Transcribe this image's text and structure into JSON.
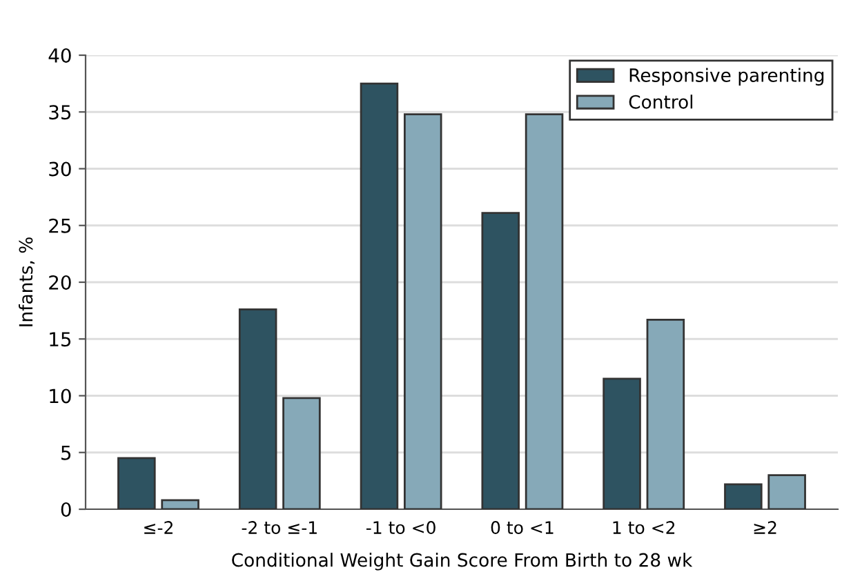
{
  "chart_data": {
    "type": "bar",
    "xlabel": "Conditional Weight Gain Score From Birth to 28 wk",
    "ylabel": "Infants, %",
    "categories": [
      "≤-2",
      "-2 to ≤-1",
      "-1 to <0",
      "0 to <1",
      "1 to <2",
      "≥2"
    ],
    "series": [
      {
        "name": "Responsive parenting",
        "color": "#2e5361",
        "values": [
          4.5,
          17.6,
          37.5,
          26.1,
          11.5,
          2.2
        ]
      },
      {
        "name": "Control",
        "color": "#86a9b8",
        "values": [
          0.8,
          9.8,
          34.8,
          34.8,
          16.7,
          3.0
        ]
      }
    ],
    "ylim": [
      0,
      40
    ],
    "yticks": [
      0,
      5,
      10,
      15,
      20,
      25,
      30,
      35,
      40
    ],
    "grid": "y",
    "legend": "top right"
  }
}
